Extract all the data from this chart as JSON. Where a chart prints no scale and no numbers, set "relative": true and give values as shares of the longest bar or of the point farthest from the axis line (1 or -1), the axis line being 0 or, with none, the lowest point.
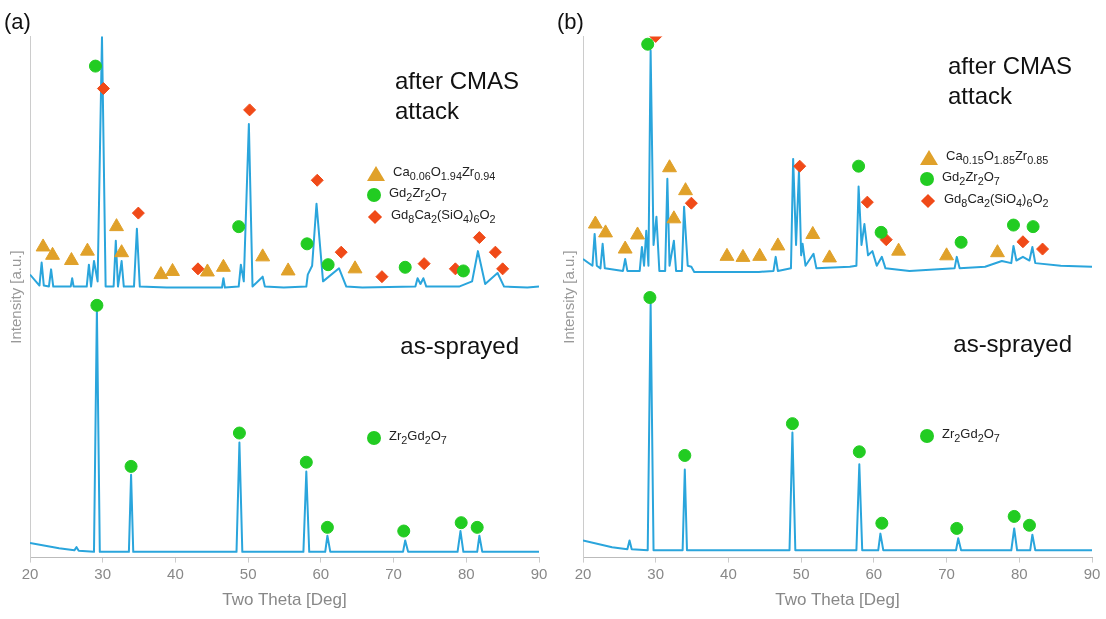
{
  "chart_data": [
    {
      "type": "line",
      "title": "(a)",
      "xlabel": "Two Theta [Deg]",
      "ylabel": "Intensity [a.u.]",
      "relative": true,
      "xlim": [
        20,
        90
      ],
      "xticks": [
        20,
        30,
        40,
        50,
        60,
        70,
        80,
        90
      ],
      "legend": "right",
      "annotations": [
        "after CMAS attack",
        "as-sprayed"
      ],
      "series": [
        {
          "color": "#2aa5dc",
          "x": [
            20,
            21.3,
            21.6,
            21.9,
            22.6,
            22.9,
            23.2,
            25.6,
            25.8,
            26.0,
            27.8,
            28.1,
            28.4,
            28.8,
            29.3,
            29.9,
            30.4,
            31.5,
            31.8,
            32.1,
            32.6,
            32.9,
            34.3,
            34.7,
            35.1,
            38.8,
            44.2,
            46.4,
            46.6,
            46.8,
            48.7,
            49.0,
            49.4,
            50.1,
            50.6,
            52.0,
            52.3,
            54.9,
            58.0,
            58.2,
            58.8,
            59.4,
            60.3,
            62.5,
            63.5,
            65.7,
            73.0,
            73.3,
            73.7,
            74.1,
            74.5,
            79.0,
            80.8,
            81.6,
            82.6,
            84.3,
            85.2,
            88.4,
            90
          ],
          "values": [
            0.543,
            0.522,
            0.566,
            0.522,
            0.52,
            0.553,
            0.52,
            0.52,
            0.536,
            0.52,
            0.52,
            0.562,
            0.52,
            0.569,
            0.53,
            1,
            0.52,
            0.52,
            0.608,
            0.52,
            0.569,
            0.52,
            0.52,
            0.631,
            0.52,
            0.518,
            0.518,
            0.518,
            0.536,
            0.518,
            0.52,
            0.562,
            0.53,
            0.832,
            0.52,
            0.539,
            0.52,
            0.518,
            0.52,
            0.543,
            0.56,
            0.679,
            0.53,
            0.555,
            0.52,
            0.518,
            0.52,
            0.536,
            0.525,
            0.536,
            0.52,
            0.52,
            0.53,
            0.588,
            0.525,
            0.546,
            0.52,
            0.518,
            0.52
          ]
        },
        {
          "color": "#2aa5dc",
          "x": [
            20,
            24,
            26.1,
            26.4,
            26.7,
            28.8,
            29.2,
            29.6,
            33.6,
            33.9,
            34.2,
            48.4,
            48.8,
            49.2,
            57.6,
            58.0,
            58.4,
            60.6,
            60.9,
            61.3,
            71.3,
            71.6,
            72.0,
            78.8,
            79.2,
            79.6,
            81.5,
            81.8,
            82.2,
            90
          ],
          "values": [
            0.028,
            0.018,
            0.014,
            0.02,
            0.013,
            0.011,
            0.478,
            0.011,
            0.011,
            0.159,
            0.011,
            0.011,
            0.221,
            0.011,
            0.011,
            0.165,
            0.011,
            0.011,
            0.042,
            0.011,
            0.011,
            0.033,
            0.011,
            0.011,
            0.051,
            0.011,
            0.011,
            0.042,
            0.011,
            0.011
          ]
        },
        {
          "name": "Ca$_{0.06}$O$_{1.94}$Zr$_{0.94}$",
          "type": "scatter",
          "marker": "triangle",
          "color": "#e0a12a",
          "x": [
            21.8,
            23.1,
            25.7,
            27.9,
            31.9,
            32.6,
            38.0,
            39.6,
            44.4,
            46.6,
            52.0,
            55.5,
            64.7
          ],
          "values": [
            0.596,
            0.58,
            0.57,
            0.588,
            0.635,
            0.585,
            0.543,
            0.549,
            0.548,
            0.557,
            0.577,
            0.55,
            0.554
          ]
        },
        {
          "name": "Gd$_{2}$Zr$_{2}$O$_{7}$",
          "type": "scatter",
          "marker": "circle",
          "color": "#22cc22",
          "x": [
            29.0,
            48.7,
            58.1,
            61.0,
            71.6,
            79.6
          ],
          "values": [
            0.943,
            0.635,
            0.602,
            0.562,
            0.557,
            0.55
          ]
        },
        {
          "name": "Gd$_{8}$Ca$_{2}$(SiO$_{4}$)$_{6}$O$_{2}$",
          "type": "scatter",
          "marker": "diamond",
          "color": "#f04a18",
          "x": [
            30.1,
            34.9,
            43.1,
            50.2,
            59.5,
            62.8,
            68.4,
            74.2,
            78.5,
            81.8,
            84.0,
            85.0
          ],
          "values": [
            0.9,
            0.661,
            0.554,
            0.859,
            0.724,
            0.586,
            0.539,
            0.564,
            0.554,
            0.614,
            0.586,
            0.554
          ]
        },
        {
          "name": "Zr$_{2}$Gd$_{2}$O$_{7}$",
          "type": "scatter",
          "marker": "circle",
          "color": "#22cc22",
          "x": [
            29.2,
            33.9,
            48.8,
            58.0,
            60.9,
            71.4,
            79.3,
            81.5
          ],
          "values": [
            0.484,
            0.175,
            0.239,
            0.183,
            0.058,
            0.051,
            0.067,
            0.058
          ]
        }
      ]
    },
    {
      "type": "line",
      "title": "(b)",
      "xlabel": "Two Theta [Deg]",
      "ylabel": "Intensity [a.u.]",
      "relative": true,
      "xlim": [
        20,
        90
      ],
      "xticks": [
        20,
        30,
        40,
        50,
        60,
        70,
        80,
        90
      ],
      "legend": "right",
      "annotations": [
        "after CMAS attack",
        "as-sprayed"
      ],
      "series": [
        {
          "color": "#2aa5dc",
          "x": [
            20,
            21.3,
            21.6,
            21.9,
            22.4,
            22.7,
            23.0,
            25.5,
            25.8,
            26.1,
            27.8,
            28.1,
            28.4,
            28.7,
            29.0,
            29.3,
            29.7,
            30.1,
            30.5,
            31.3,
            31.6,
            31.9,
            32.5,
            32.8,
            33.6,
            33.9,
            34.4,
            34.9,
            35.3,
            35.9,
            44.2,
            46.2,
            46.5,
            46.8,
            48.6,
            48.9,
            49.3,
            49.7,
            50.0,
            50.2,
            50.6,
            51.7,
            52.1,
            56.7,
            57.6,
            57.9,
            58.3,
            58.7,
            59.2,
            59.8,
            60.4,
            61.1,
            61.6,
            64.9,
            71.1,
            71.4,
            71.8,
            75.3,
            77.6,
            78.9,
            79.2,
            79.6,
            80.5,
            81.4,
            81.8,
            82.2,
            85.7,
            90
          ],
          "values": [
            0.573,
            0.56,
            0.621,
            0.56,
            0.555,
            0.602,
            0.555,
            0.55,
            0.573,
            0.55,
            0.55,
            0.596,
            0.56,
            0.627,
            0.56,
            0.973,
            0.6,
            0.654,
            0.55,
            0.55,
            0.727,
            0.56,
            0.608,
            0.55,
            0.55,
            0.673,
            0.56,
            0.558,
            0.548,
            0.548,
            0.548,
            0.55,
            0.577,
            0.55,
            0.555,
            0.765,
            0.6,
            0.742,
            0.58,
            0.602,
            0.56,
            0.583,
            0.555,
            0.558,
            0.56,
            0.712,
            0.6,
            0.64,
            0.58,
            0.588,
            0.56,
            0.577,
            0.555,
            0.55,
            0.555,
            0.577,
            0.555,
            0.558,
            0.569,
            0.565,
            0.598,
            0.57,
            0.577,
            0.57,
            0.596,
            0.565,
            0.56,
            0.558
          ]
        },
        {
          "color": "#2aa5dc",
          "x": [
            20,
            24,
            26.1,
            26.4,
            26.7,
            28.9,
            29.3,
            29.7,
            33.7,
            34.0,
            34.3,
            48.4,
            48.8,
            49.2,
            57.6,
            58.0,
            58.4,
            60.6,
            60.9,
            61.3,
            71.3,
            71.6,
            72.0,
            78.9,
            79.3,
            79.7,
            81.5,
            81.8,
            82.2,
            90
          ],
          "values": [
            0.033,
            0.02,
            0.016,
            0.033,
            0.016,
            0.014,
            0.487,
            0.014,
            0.014,
            0.169,
            0.014,
            0.014,
            0.24,
            0.014,
            0.014,
            0.179,
            0.014,
            0.014,
            0.046,
            0.014,
            0.014,
            0.037,
            0.014,
            0.014,
            0.056,
            0.014,
            0.014,
            0.044,
            0.014,
            0.014
          ]
        },
        {
          "name": "Ca$_{0.15}$O$_{1.85}$Zr$_{0.85}$",
          "type": "scatter",
          "marker": "triangle",
          "color": "#e0a12a",
          "x": [
            21.7,
            23.1,
            25.8,
            27.5,
            31.9,
            32.5,
            34.1,
            39.8,
            42.0,
            44.3,
            46.8,
            51.6,
            53.9,
            63.4,
            70.0,
            77.0
          ],
          "values": [
            0.64,
            0.623,
            0.592,
            0.619,
            0.748,
            0.65,
            0.704,
            0.578,
            0.576,
            0.578,
            0.598,
            0.62,
            0.575,
            0.588,
            0.579,
            0.585
          ]
        },
        {
          "name": "Gd$_{2}$Zr$_{2}$O$_{7}$",
          "type": "scatter",
          "marker": "circle",
          "color": "#22cc22",
          "x": [
            28.9,
            57.9,
            61.0,
            72.0,
            79.2,
            81.9
          ],
          "values": [
            0.985,
            0.751,
            0.624,
            0.605,
            0.638,
            0.635
          ]
        },
        {
          "name": "Gd$_{8}$Ca$_{2}$(SiO$_{4}$)$_{6}$O$_{2}$",
          "type": "scatter",
          "marker": "diamond",
          "color": "#f04a18",
          "x": [
            30.0,
            34.9,
            49.8,
            59.1,
            61.7,
            80.5,
            83.2
          ],
          "values": [
            1,
            0.68,
            0.751,
            0.682,
            0.61,
            0.606,
            0.592
          ]
        },
        {
          "name": "Zr$_{2}$Gd$_{2}$O$_{7}$",
          "type": "scatter",
          "marker": "circle",
          "color": "#22cc22",
          "x": [
            29.2,
            34.0,
            48.8,
            58.0,
            61.1,
            71.4,
            79.3,
            81.4
          ],
          "values": [
            0.499,
            0.196,
            0.257,
            0.203,
            0.066,
            0.056,
            0.079,
            0.062
          ]
        }
      ]
    }
  ]
}
